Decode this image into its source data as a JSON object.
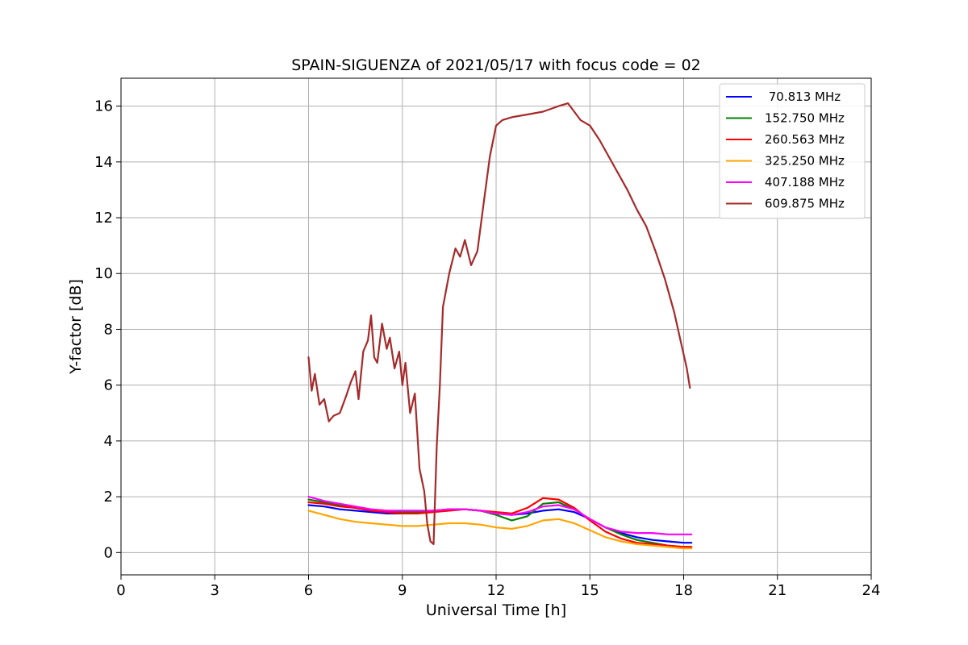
{
  "chart_data": {
    "type": "line",
    "title": "SPAIN-SIGUENZA of 2021/05/17 with focus code = 02",
    "xlabel": "Universal Time [h]",
    "ylabel": "Y-factor [dB]",
    "xlim": [
      0,
      24
    ],
    "ylim": [
      -0.8,
      17.0
    ],
    "xticks": [
      0,
      3,
      6,
      9,
      12,
      15,
      18,
      21,
      24
    ],
    "xtick_labels": [
      "0",
      "3",
      "6",
      "9",
      "12",
      "15",
      "18",
      "21",
      "24"
    ],
    "yticks": [
      0,
      2,
      4,
      6,
      8,
      10,
      12,
      14,
      16
    ],
    "ytick_labels": [
      "0",
      "2",
      "4",
      "6",
      "8",
      "10",
      "12",
      "14",
      "16"
    ],
    "grid": true,
    "legend_position": "top-right",
    "series": [
      {
        "name": " 70.813 MHz",
        "color": "#0000ff",
        "x": [
          6.0,
          6.5,
          7.0,
          7.5,
          8.0,
          8.5,
          9.0,
          9.5,
          10.0,
          10.5,
          11.0,
          11.5,
          12.0,
          12.5,
          13.0,
          13.5,
          14.0,
          14.5,
          15.0,
          15.5,
          16.0,
          16.5,
          17.0,
          17.5,
          18.0,
          18.25
        ],
        "y": [
          1.7,
          1.65,
          1.55,
          1.5,
          1.45,
          1.4,
          1.4,
          1.45,
          1.5,
          1.55,
          1.55,
          1.5,
          1.4,
          1.35,
          1.4,
          1.5,
          1.55,
          1.45,
          1.2,
          0.9,
          0.7,
          0.55,
          0.45,
          0.4,
          0.35,
          0.35
        ]
      },
      {
        "name": "152.750 MHz",
        "color": "#008000",
        "x": [
          6.0,
          6.5,
          7.0,
          7.5,
          8.0,
          8.5,
          9.0,
          9.5,
          10.0,
          10.5,
          11.0,
          11.5,
          12.0,
          12.5,
          13.0,
          13.5,
          14.0,
          14.5,
          15.0,
          15.5,
          16.0,
          16.5,
          17.0,
          17.5,
          18.0,
          18.25
        ],
        "y": [
          1.9,
          1.8,
          1.7,
          1.6,
          1.55,
          1.5,
          1.45,
          1.45,
          1.5,
          1.55,
          1.55,
          1.5,
          1.35,
          1.15,
          1.3,
          1.75,
          1.8,
          1.55,
          1.2,
          0.9,
          0.65,
          0.45,
          0.35,
          0.25,
          0.2,
          0.2
        ]
      },
      {
        "name": "260.563 MHz",
        "color": "#ff0000",
        "x": [
          6.0,
          6.5,
          7.0,
          7.5,
          8.0,
          8.5,
          9.0,
          9.5,
          10.0,
          10.5,
          11.0,
          11.5,
          12.0,
          12.5,
          13.0,
          13.5,
          14.0,
          14.5,
          15.0,
          15.5,
          16.0,
          16.5,
          17.0,
          17.5,
          18.0,
          18.25
        ],
        "y": [
          1.8,
          1.75,
          1.65,
          1.6,
          1.5,
          1.45,
          1.4,
          1.4,
          1.45,
          1.5,
          1.55,
          1.5,
          1.45,
          1.4,
          1.6,
          1.95,
          1.9,
          1.6,
          1.15,
          0.75,
          0.5,
          0.35,
          0.3,
          0.25,
          0.2,
          0.2
        ]
      },
      {
        "name": "325.250 MHz",
        "color": "#ffa500",
        "x": [
          6.0,
          6.5,
          7.0,
          7.5,
          8.0,
          8.5,
          9.0,
          9.5,
          10.0,
          10.5,
          11.0,
          11.5,
          12.0,
          12.5,
          13.0,
          13.5,
          14.0,
          14.5,
          15.0,
          15.5,
          16.0,
          16.5,
          17.0,
          17.5,
          18.0,
          18.25
        ],
        "y": [
          1.5,
          1.35,
          1.2,
          1.1,
          1.05,
          1.0,
          0.95,
          0.95,
          1.0,
          1.05,
          1.05,
          1.0,
          0.9,
          0.85,
          0.95,
          1.15,
          1.2,
          1.05,
          0.8,
          0.55,
          0.4,
          0.3,
          0.25,
          0.2,
          0.15,
          0.15
        ]
      },
      {
        "name": "407.188 MHz",
        "color": "#ff00ff",
        "x": [
          6.0,
          6.5,
          7.0,
          7.5,
          8.0,
          8.5,
          9.0,
          9.5,
          10.0,
          10.5,
          11.0,
          11.5,
          12.0,
          12.5,
          13.0,
          13.5,
          14.0,
          14.5,
          15.0,
          15.5,
          16.0,
          16.5,
          17.0,
          17.5,
          18.0,
          18.25
        ],
        "y": [
          2.0,
          1.85,
          1.75,
          1.65,
          1.55,
          1.5,
          1.5,
          1.5,
          1.5,
          1.55,
          1.55,
          1.5,
          1.4,
          1.35,
          1.45,
          1.65,
          1.7,
          1.55,
          1.2,
          0.9,
          0.75,
          0.7,
          0.7,
          0.65,
          0.65,
          0.65
        ]
      },
      {
        "name": "609.875 MHz",
        "color": "#a52a2a",
        "x": [
          6.0,
          6.1,
          6.2,
          6.35,
          6.5,
          6.65,
          6.8,
          7.0,
          7.2,
          7.35,
          7.5,
          7.6,
          7.75,
          7.9,
          8.0,
          8.1,
          8.2,
          8.35,
          8.5,
          8.6,
          8.75,
          8.9,
          9.0,
          9.1,
          9.25,
          9.4,
          9.55,
          9.7,
          9.8,
          9.9,
          10.0,
          10.1,
          10.2,
          10.3,
          10.5,
          10.7,
          10.85,
          11.0,
          11.2,
          11.4,
          11.6,
          11.8,
          12.0,
          12.2,
          12.5,
          13.0,
          13.5,
          14.0,
          14.3,
          14.5,
          14.7,
          15.0,
          15.3,
          15.6,
          15.9,
          16.2,
          16.5,
          16.8,
          17.1,
          17.4,
          17.7,
          17.9,
          18.1,
          18.2
        ],
        "y": [
          7.0,
          5.8,
          6.4,
          5.3,
          5.5,
          4.7,
          4.9,
          5.0,
          5.6,
          6.1,
          6.5,
          5.5,
          7.2,
          7.6,
          8.5,
          7.0,
          6.8,
          8.2,
          7.3,
          7.7,
          6.6,
          7.2,
          6.0,
          6.8,
          5.0,
          5.7,
          3.0,
          2.2,
          1.0,
          0.4,
          0.3,
          3.8,
          6.0,
          8.8,
          10.0,
          10.9,
          10.6,
          11.2,
          10.3,
          10.8,
          12.5,
          14.2,
          15.3,
          15.5,
          15.6,
          15.7,
          15.8,
          16.0,
          16.1,
          15.8,
          15.5,
          15.3,
          14.8,
          14.2,
          13.6,
          13.0,
          12.3,
          11.7,
          10.8,
          9.8,
          8.6,
          7.6,
          6.6,
          5.9
        ]
      }
    ]
  }
}
